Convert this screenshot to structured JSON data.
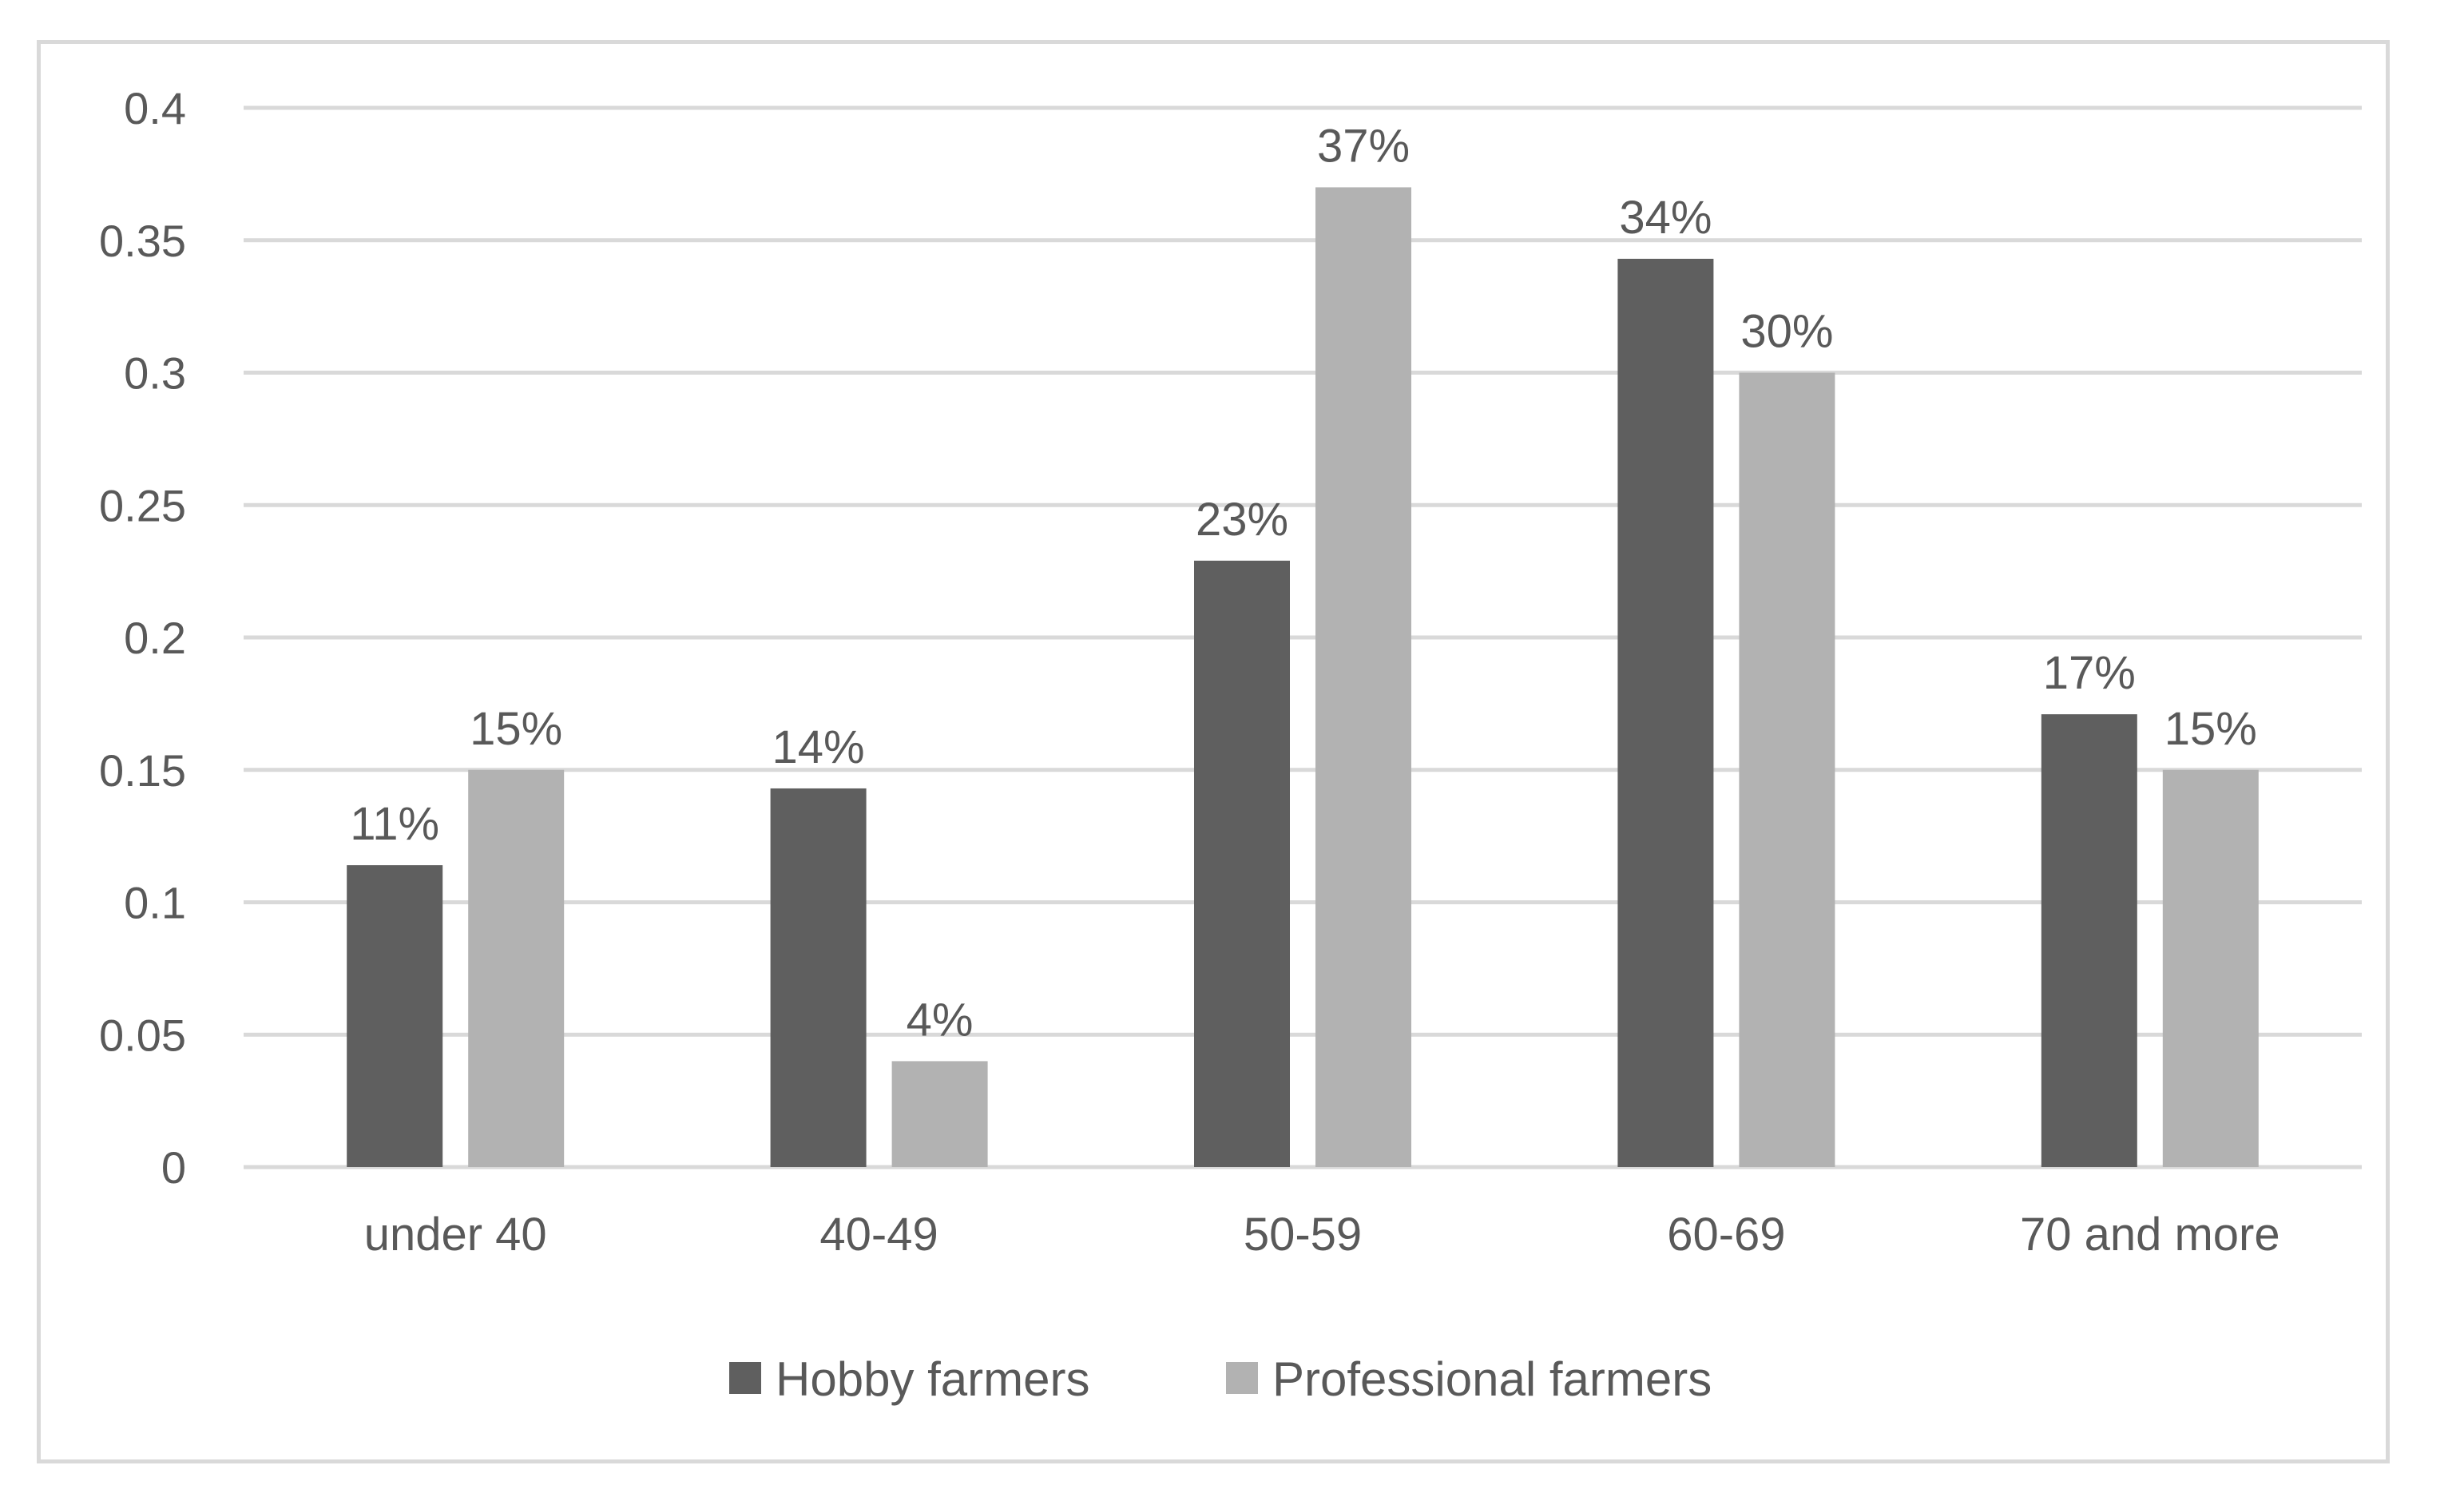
{
  "chart_data": {
    "type": "bar",
    "title": "",
    "xlabel": "",
    "ylabel": "",
    "categories": [
      "under 40",
      "40-49",
      "50-59",
      "60-69",
      "70 and more"
    ],
    "series": [
      {
        "name": "Hobby farmers",
        "values": [
          0.114,
          0.143,
          0.229,
          0.343,
          0.171
        ],
        "labels": [
          "11%",
          "14%",
          "23%",
          "34%",
          "17%"
        ],
        "color": "#5f5f5f"
      },
      {
        "name": "Professional farmers",
        "values": [
          0.15,
          0.04,
          0.37,
          0.3,
          0.15
        ],
        "labels": [
          "15%",
          "4%",
          "37%",
          "30%",
          "15%"
        ],
        "color": "#b2b2b2"
      }
    ],
    "ylim": [
      0,
      0.4
    ],
    "yticks": [
      "0",
      "0.05",
      "0.1",
      "0.15",
      "0.2",
      "0.25",
      "0.3",
      "0.35",
      "0.4"
    ],
    "grid": true,
    "legend_position": "bottom",
    "colors": {
      "gridline": "#d9d9d9",
      "text": "#595959",
      "border": "#d9d9d9"
    }
  }
}
